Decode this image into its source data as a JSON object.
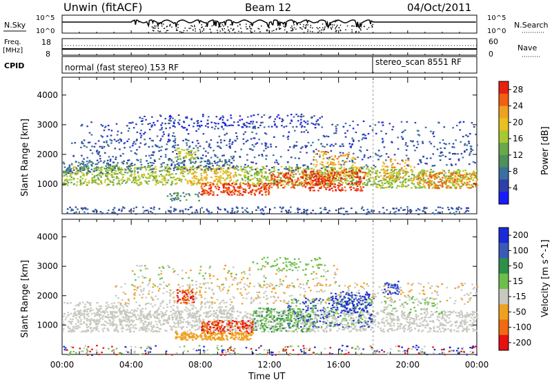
{
  "header": {
    "station": "Unwin (fitACF)",
    "beam": "Beam 12",
    "date": "04/Oct/2011"
  },
  "top_panels": {
    "nsky_label": "N.Sky",
    "nsearch_label": "N.Search",
    "nsky_ticks": [
      "10^5",
      "10^0"
    ],
    "nsearch_ticks": [
      "10^5",
      "10^0"
    ],
    "freq_label_1": "Freq.",
    "freq_label_2": "[MHz]",
    "freq_ticks": [
      "18",
      "8"
    ],
    "nave_label": "Nave",
    "nave_ticks": [
      "60",
      "0"
    ],
    "cpid_label": "CPID",
    "cpid_modes": [
      {
        "text": "normal (fast stereo) 153 RF",
        "start_ut": "00:00"
      },
      {
        "text": "stereo_scan 8551 RF",
        "start_ut": "18:00"
      }
    ]
  },
  "chart_data": [
    {
      "type": "heatmap",
      "title": "",
      "xlabel": "Time UT",
      "ylabel": "Slant Range [km]",
      "x_ticks": [
        "00:00",
        "04:00",
        "08:00",
        "12:00",
        "16:00",
        "20:00",
        "00:00"
      ],
      "x_range_hours": [
        0,
        24
      ],
      "y_ticks": [
        1000,
        2000,
        3000,
        4000
      ],
      "ylim": [
        0,
        4600
      ],
      "colorbar": {
        "label": "Power [dB]",
        "ticks": [
          4,
          8,
          12,
          16,
          20,
          24,
          28
        ],
        "range": [
          0,
          30
        ],
        "colors": [
          "#1a1aff",
          "#2f3fa8",
          "#3a6fa0",
          "#4e8f5a",
          "#6aa84a",
          "#a8c830",
          "#e8c020",
          "#f0a020",
          "#f06010",
          "#e82010"
        ]
      }
    },
    {
      "type": "heatmap",
      "title": "",
      "xlabel": "Time UT",
      "ylabel": "Slant Range [km]",
      "x_ticks": [
        "00:00",
        "04:00",
        "08:00",
        "12:00",
        "16:00",
        "20:00",
        "00:00"
      ],
      "x_range_hours": [
        0,
        24
      ],
      "y_ticks": [
        1000,
        2000,
        3000,
        4000
      ],
      "ylim": [
        0,
        4600
      ],
      "colorbar": {
        "label": "Velocity [m s^-1]",
        "ticks": [
          200,
          100,
          50,
          15,
          -15,
          -50,
          -100,
          -200
        ],
        "colors": [
          "#1a2ad8",
          "#3a5ab8",
          "#2e8f4a",
          "#6cc04a",
          "#c8c8c0",
          "#f0a020",
          "#f06a10",
          "#e81010"
        ]
      }
    }
  ]
}
